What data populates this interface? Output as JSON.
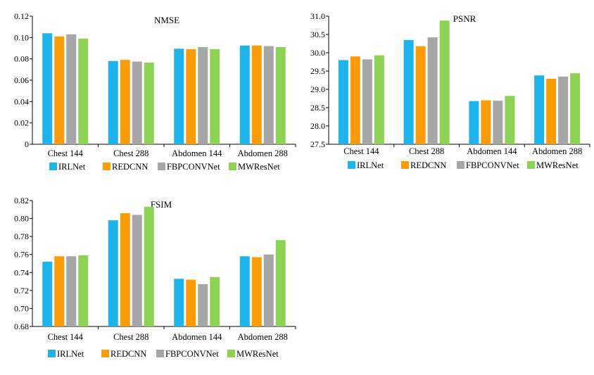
{
  "colors": {
    "IRLNet": "#1fb3ec",
    "REDCNN": "#fb9b07",
    "FBPCONVNet": "#a6a6a6",
    "MWResNet": "#8dd254"
  },
  "chart_data": [
    {
      "type": "bar",
      "title": "NMSE",
      "categories": [
        "Chest 144",
        "Chest 288",
        "Abdomen 144",
        "Abdomen 288"
      ],
      "series": [
        {
          "name": "IRLNet",
          "values": [
            0.104,
            0.078,
            0.0895,
            0.0925
          ]
        },
        {
          "name": "REDCNN",
          "values": [
            0.101,
            0.079,
            0.089,
            0.0925
          ]
        },
        {
          "name": "FBPCONVNet",
          "values": [
            0.103,
            0.0775,
            0.091,
            0.092
          ]
        },
        {
          "name": "MWResNet",
          "values": [
            0.099,
            0.0765,
            0.089,
            0.091
          ]
        }
      ],
      "ylim": [
        0,
        0.12
      ],
      "yticks": [
        "0",
        "0.02",
        "0.04",
        "0.06",
        "0.08",
        "0.10",
        "0.12"
      ],
      "legend": "bottom"
    },
    {
      "type": "bar",
      "title": "PSNR",
      "categories": [
        "Chest 144",
        "Chest 288",
        "Abdomen 144",
        "Abdomen 288"
      ],
      "series": [
        {
          "name": "IRLNet",
          "values": [
            29.8,
            30.35,
            28.68,
            29.38
          ]
        },
        {
          "name": "REDCNN",
          "values": [
            29.9,
            30.18,
            28.7,
            29.29
          ]
        },
        {
          "name": "FBPCONVNet",
          "values": [
            29.82,
            30.42,
            28.69,
            29.35
          ]
        },
        {
          "name": "MWResNet",
          "values": [
            29.93,
            30.88,
            28.82,
            29.44
          ]
        }
      ],
      "ylim": [
        27.5,
        31.0
      ],
      "yticks": [
        "27.5",
        "28.0",
        "28.5",
        "29.0",
        "29.5",
        "30.0",
        "30.5",
        "31.0"
      ],
      "legend": "bottom"
    },
    {
      "type": "bar",
      "title": "FSIM",
      "categories": [
        "Chest 144",
        "Chest 288",
        "Abdomen 144",
        "Abdomen 288"
      ],
      "series": [
        {
          "name": "IRLNet",
          "values": [
            0.752,
            0.798,
            0.733,
            0.758
          ]
        },
        {
          "name": "REDCNN",
          "values": [
            0.758,
            0.806,
            0.732,
            0.757
          ]
        },
        {
          "name": "FBPCONVNet",
          "values": [
            0.758,
            0.804,
            0.727,
            0.76
          ]
        },
        {
          "name": "MWResNet",
          "values": [
            0.759,
            0.813,
            0.735,
            0.776
          ]
        }
      ],
      "ylim": [
        0.68,
        0.82
      ],
      "yticks": [
        "0.68",
        "0.70",
        "0.72",
        "0.74",
        "0.76",
        "0.78",
        "0.80",
        "0.82"
      ],
      "legend": "bottom"
    }
  ]
}
